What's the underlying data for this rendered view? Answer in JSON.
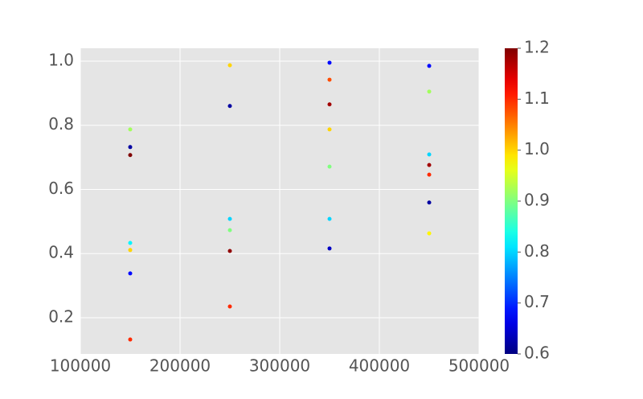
{
  "chart_data": {
    "type": "scatter",
    "x": [
      150000,
      150000,
      150000,
      150000,
      150000,
      150000,
      150000,
      250000,
      250000,
      250000,
      250000,
      250000,
      250000,
      350000,
      350000,
      350000,
      350000,
      350000,
      350000,
      350000,
      450000,
      450000,
      450000,
      450000,
      450000,
      450000,
      450000
    ],
    "y": [
      0.787,
      0.732,
      0.707,
      0.433,
      0.411,
      0.338,
      0.132,
      0.987,
      0.86,
      0.508,
      0.473,
      0.408,
      0.235,
      0.995,
      0.942,
      0.865,
      0.787,
      0.671,
      0.508,
      0.416,
      0.985,
      0.905,
      0.709,
      0.676,
      0.646,
      0.559,
      0.463
    ],
    "c": [
      0.92,
      0.62,
      1.2,
      0.82,
      1.0,
      0.68,
      1.1,
      1.0,
      0.62,
      0.8,
      0.9,
      1.19,
      1.1,
      0.68,
      1.08,
      1.18,
      1.0,
      0.9,
      0.8,
      0.64,
      0.68,
      0.92,
      0.8,
      1.18,
      1.1,
      0.62,
      0.98
    ],
    "colormap": "jet",
    "xlim": [
      100000,
      500000
    ],
    "xticks": [
      100000,
      200000,
      300000,
      400000,
      500000
    ],
    "ylim": [
      0.087,
      1.04
    ],
    "yticks": [
      0.2,
      0.4,
      0.6,
      0.8,
      {
        "value": 1,
        "label": "1.0"
      }
    ],
    "clim": [
      0.6,
      1.2
    ],
    "cticks": [
      0.6,
      0.7,
      0.8,
      0.9,
      {
        "value": 1,
        "label": "1.0"
      },
      1.1,
      1.2
    ],
    "grid": true
  }
}
